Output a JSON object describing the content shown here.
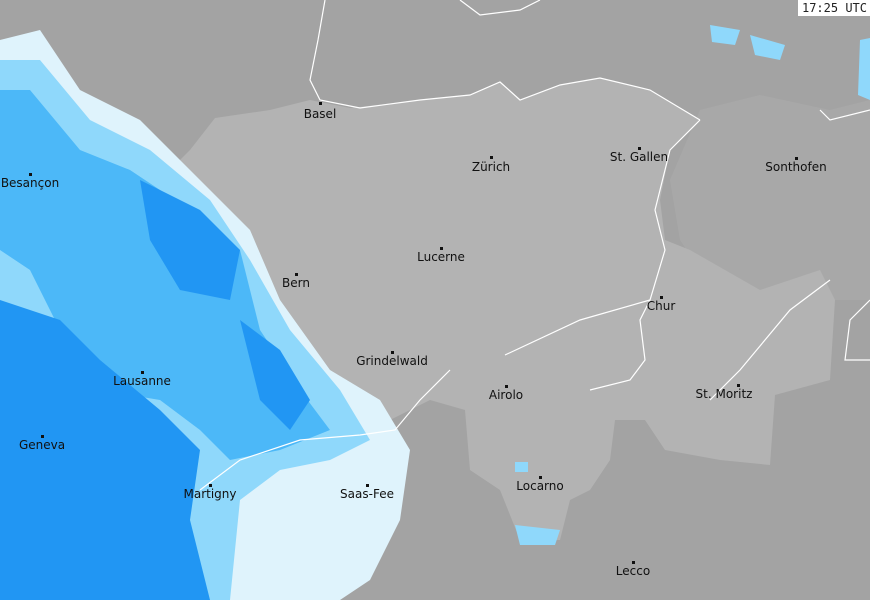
{
  "timestamp": "17:25 UTC",
  "colors": {
    "outside_land": "#a3a3a3",
    "switzerland": "#b3b3b3",
    "austria_region": "#a8a8a8",
    "radar_heavy": "#2196f3",
    "radar_medium": "#4cb8f8",
    "radar_light": "#8fd8fb",
    "radar_very_light": "#dff3fc",
    "borders": "#ffffff"
  },
  "cities": [
    {
      "name": "Basel"
    },
    {
      "name": "Zürich"
    },
    {
      "name": "St. Gallen"
    },
    {
      "name": "Sonthofen"
    },
    {
      "name": "Besançon"
    },
    {
      "name": "Lucerne"
    },
    {
      "name": "Bern"
    },
    {
      "name": "Chur"
    },
    {
      "name": "Grindelwald"
    },
    {
      "name": "Lausanne"
    },
    {
      "name": "Airolo"
    },
    {
      "name": "St. Moritz"
    },
    {
      "name": "Geneva"
    },
    {
      "name": "Martigny"
    },
    {
      "name": "Saas-Fee"
    },
    {
      "name": "Locarno"
    },
    {
      "name": "Lecco"
    }
  ]
}
